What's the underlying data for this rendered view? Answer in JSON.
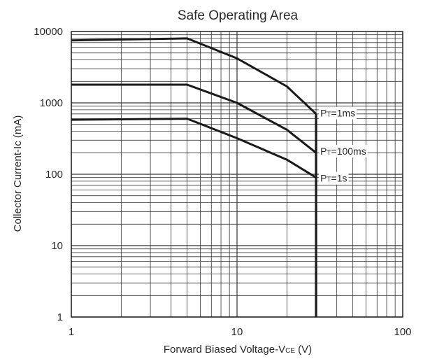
{
  "chart_data": {
    "type": "line",
    "title": "Safe Operating Area",
    "xlabel": {
      "main": "Forward Biased Voltage-V",
      "sub": "CE",
      "unit": " (V)"
    },
    "ylabel": "Collector Current-Ic (mA)",
    "x_scale": "log",
    "y_scale": "log",
    "xlim": [
      1,
      100
    ],
    "ylim": [
      1,
      10000
    ],
    "x_ticks": [
      1,
      10,
      100
    ],
    "x_tick_labels": [
      "1",
      "10",
      "100"
    ],
    "y_ticks": [
      1,
      10,
      100,
      1000,
      10000
    ],
    "y_tick_labels": [
      "1",
      "10",
      "100",
      "1000",
      "10000"
    ],
    "grid": true,
    "series": [
      {
        "name": "PT=1ms",
        "points": [
          [
            1,
            7500
          ],
          [
            5,
            8000
          ],
          [
            10,
            4200
          ],
          [
            20,
            1700
          ],
          [
            30,
            700
          ]
        ]
      },
      {
        "name": "PT=100ms",
        "points": [
          [
            1,
            1800
          ],
          [
            5,
            1800
          ],
          [
            10,
            1000
          ],
          [
            20,
            420
          ],
          [
            30,
            200
          ]
        ]
      },
      {
        "name": "PT=1s",
        "points": [
          [
            1,
            580
          ],
          [
            5,
            600
          ],
          [
            10,
            320
          ],
          [
            20,
            160
          ],
          [
            30,
            90
          ]
        ]
      }
    ],
    "vertical_limit": {
      "x": 30,
      "y_from": 1,
      "y_to": 700
    },
    "annotations": [
      {
        "prefix": "P",
        "sub": "T",
        "rest": "=1ms",
        "x": 30,
        "y": 720
      },
      {
        "prefix": "P",
        "sub": "T",
        "rest": "=100ms",
        "x": 30,
        "y": 210
      },
      {
        "prefix": "P",
        "sub": "T",
        "rest": "=1s",
        "x": 30,
        "y": 88
      }
    ]
  }
}
